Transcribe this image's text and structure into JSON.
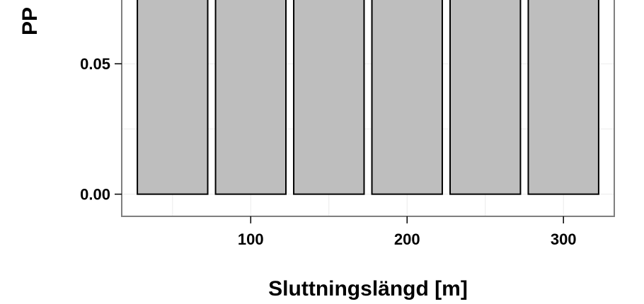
{
  "chart_data": {
    "type": "bar",
    "xlabel": "Sluttningslängd [m]",
    "ylabel": "PP",
    "x_ticks": [
      100,
      200,
      300
    ],
    "y_ticks": [
      0.0,
      0.05
    ],
    "y_tick_labels": [
      "0.00",
      "0.05"
    ],
    "x": [
      50,
      100,
      150,
      200,
      250,
      300
    ],
    "values": [
      0.075,
      0.075,
      0.075,
      0.075,
      0.075,
      0.075
    ],
    "bar_width": 45,
    "xlim": [
      17.5,
      332.5
    ],
    "ylim": [
      -0.0085,
      0.075
    ],
    "grid": true,
    "colors": {
      "bar_fill": "#bebebe",
      "bar_stroke": "#000000",
      "grid": "#ebebeb",
      "panel_border": "#7f7f7f"
    }
  }
}
